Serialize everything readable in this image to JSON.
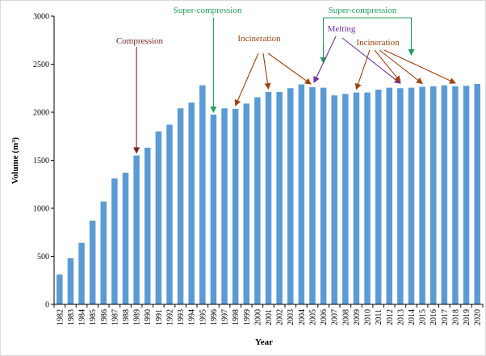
{
  "chart_data": {
    "type": "bar",
    "xlabel": "Year",
    "ylabel": "Volume (m³)",
    "ylim": [
      0,
      3000
    ],
    "yticks": [
      0,
      500,
      1000,
      1500,
      2000,
      2500,
      3000
    ],
    "grid": false,
    "colors": {
      "bar": "#5b9bd5",
      "compression": "#7b1f1f",
      "super_compression": "#22a05a",
      "incineration": "#a0410d",
      "melting": "#7030a0"
    },
    "categories": [
      "1982",
      "1983",
      "1984",
      "1985",
      "1986",
      "1987",
      "1988",
      "1989",
      "1990",
      "1991",
      "1992",
      "1993",
      "1994",
      "1995",
      "1996",
      "1997",
      "1998",
      "1999",
      "2000",
      "2001",
      "2002",
      "2003",
      "2004",
      "2005",
      "2006",
      "2007",
      "2008",
      "2009",
      "2010",
      "2011",
      "2012",
      "2013",
      "2014",
      "2015",
      "2016",
      "2017",
      "2018",
      "2019",
      "2020"
    ],
    "values": [
      310,
      480,
      640,
      870,
      1070,
      1310,
      1370,
      1550,
      1630,
      1800,
      1870,
      2040,
      2100,
      2280,
      1975,
      2040,
      2035,
      2090,
      2155,
      2210,
      2210,
      2250,
      2290,
      2260,
      2255,
      2175,
      2190,
      2205,
      2205,
      2235,
      2255,
      2250,
      2255,
      2265,
      2270,
      2280,
      2270,
      2275,
      2295
    ],
    "annotations": [
      {
        "id": "compression",
        "text": "Compression",
        "color_key": "compression",
        "targets": [
          "1989"
        ]
      },
      {
        "id": "super-compression-1",
        "text": "Super-compression",
        "color_key": "super_compression",
        "targets": [
          "1996"
        ]
      },
      {
        "id": "incineration-1",
        "text": "Incineration",
        "color_key": "incineration",
        "targets": [
          "1998",
          "2001",
          "2005"
        ]
      },
      {
        "id": "super-compression-2",
        "text": "Super-compression",
        "color_key": "super_compression",
        "targets": [
          "2006",
          "2014"
        ]
      },
      {
        "id": "melting",
        "text": "Melting",
        "color_key": "melting",
        "targets": [
          "2005",
          "2013"
        ]
      },
      {
        "id": "incineration-2",
        "text": "Incineration",
        "color_key": "incineration",
        "targets": [
          "2009",
          "2013",
          "2015",
          "2018"
        ]
      }
    ]
  }
}
